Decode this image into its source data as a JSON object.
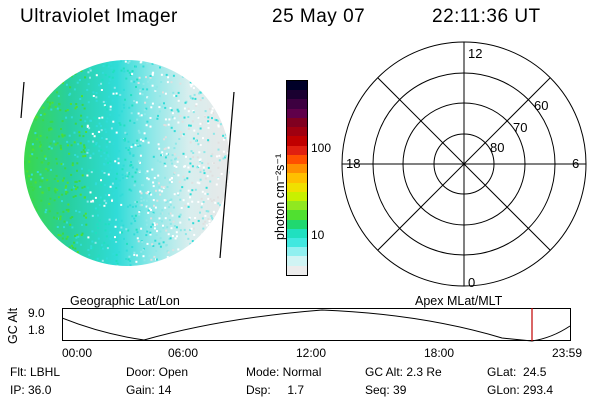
{
  "header": {
    "title": "Ultraviolet Imager",
    "date": "25 May 07",
    "time": "22:11:36 UT"
  },
  "colorbar": {
    "unit_label": "photon cm⁻²s⁻¹",
    "tick_labels": [
      "100",
      "10"
    ],
    "colors": [
      "#000028",
      "#1a0030",
      "#3d0040",
      "#60004a",
      "#800020",
      "#a00010",
      "#c00000",
      "#e02010",
      "#ff5000",
      "#ff9000",
      "#ffc000",
      "#f0e000",
      "#c8f000",
      "#90e820",
      "#50e030",
      "#20d870",
      "#20e0c0",
      "#40e8e0",
      "#90f0f0",
      "#d0f4f4",
      "#ececec"
    ]
  },
  "polar_plot": {
    "mlt_labels": {
      "top": "12",
      "left": "18",
      "right": "6",
      "bottom": "0"
    },
    "lat_labels": [
      "60",
      "70",
      "80"
    ]
  },
  "track": {
    "left_label": "Geographic Lat/Lon",
    "right_label": "Apex MLat/MLT",
    "axis_label": "GC Alt",
    "y_ticks": [
      "9.0",
      "1.8"
    ],
    "x_ticks": [
      "00:00",
      "06:00",
      "12:00",
      "18:00",
      "23:59"
    ],
    "current_marker_color": "#c00000"
  },
  "status": {
    "row1": [
      "Flt: LBHL",
      "Door: Open",
      "Mode: Normal",
      "GC Alt: 2.3 Re",
      "GLat:  24.5"
    ],
    "row2": [
      "IP: 36.0",
      "Gain: 14",
      "Dsp:     1.7",
      "Seq: 39",
      "GLon: 293.4"
    ]
  }
}
